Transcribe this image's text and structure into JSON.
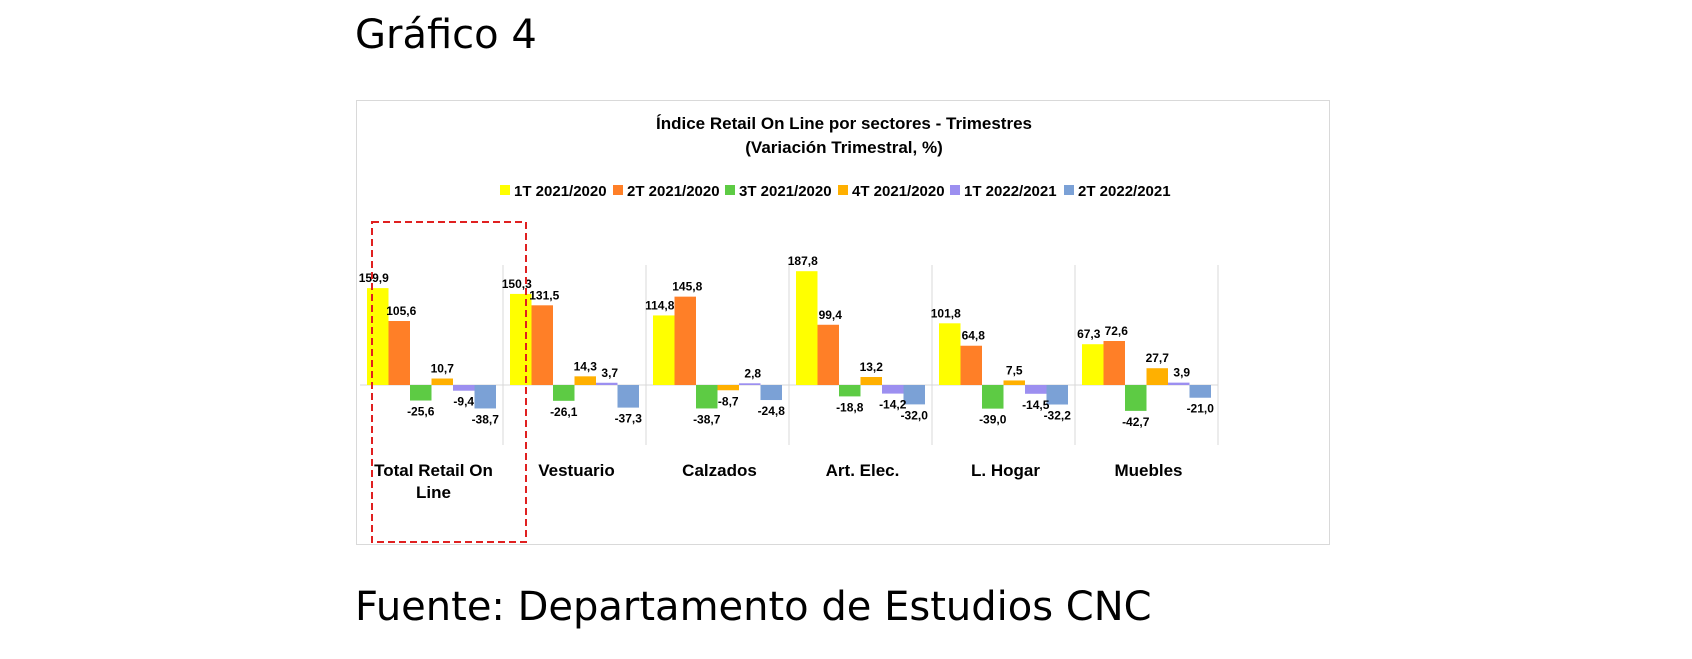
{
  "page": {
    "heading": "Gráfico 4",
    "source": "Fuente: Departamento de Estudios CNC"
  },
  "chart_data": {
    "type": "bar",
    "title": "Índice Retail On Line por sectores - Trimestres",
    "subtitle": "(Variación Trimestral, %)",
    "categories": [
      [
        "Total Retail On",
        "Line"
      ],
      [
        "Vestuario"
      ],
      [
        "Calzados"
      ],
      [
        "Art. Elec."
      ],
      [
        "L. Hogar"
      ],
      [
        "Muebles"
      ]
    ],
    "series": [
      {
        "name": "1T 2021/2020",
        "color": "#FFFF00",
        "values": [
          159.9,
          150.3,
          114.8,
          187.8,
          101.8,
          67.3
        ],
        "labels": [
          "159,9",
          "150,3",
          "114,8",
          "187,8",
          "101,8",
          "67,3"
        ]
      },
      {
        "name": "2T 2021/2020",
        "color": "#FF7F27",
        "values": [
          105.6,
          131.5,
          145.8,
          99.4,
          64.8,
          72.6
        ],
        "labels": [
          "105,6",
          "131,5",
          "145,8",
          "99,4",
          "64,8",
          "72,6"
        ]
      },
      {
        "name": "3T 2021/2020",
        "color": "#5DCB44",
        "values": [
          -25.6,
          -26.1,
          -38.7,
          -18.8,
          -39.0,
          -42.7
        ],
        "labels": [
          "-25,6",
          "-26,1",
          "-38,7",
          "-18,8",
          "-39,0",
          "-42,7"
        ]
      },
      {
        "name": "4T 2021/2020",
        "color": "#FFB000",
        "values": [
          10.7,
          14.3,
          -8.7,
          13.2,
          7.5,
          27.7
        ],
        "labels": [
          "10,7",
          "14,3",
          "-8,7",
          "13,2",
          "7,5",
          "27,7"
        ]
      },
      {
        "name": "1T 2022/2021",
        "color": "#9C8FF0",
        "values": [
          -9.4,
          3.7,
          2.8,
          -14.2,
          -14.5,
          3.9
        ],
        "labels": [
          "-9,4",
          "3,7",
          "2,8",
          "-14,2",
          "-14,5",
          "3,9"
        ]
      },
      {
        "name": "2T 2022/2021",
        "color": "#7BA1D6",
        "values": [
          -38.7,
          -37.3,
          -24.8,
          -32.0,
          -32.2,
          -21.0
        ],
        "labels": [
          "-38,7",
          "-37,3",
          "-24,8",
          "-32,0",
          "-32,2",
          "-21,0"
        ]
      }
    ],
    "highlight": {
      "category_index": 0,
      "color": "#E02020",
      "style": "dashed"
    },
    "legend_position": "top",
    "grid": false,
    "category_separators": true,
    "ylim": [
      -80,
      200
    ]
  }
}
